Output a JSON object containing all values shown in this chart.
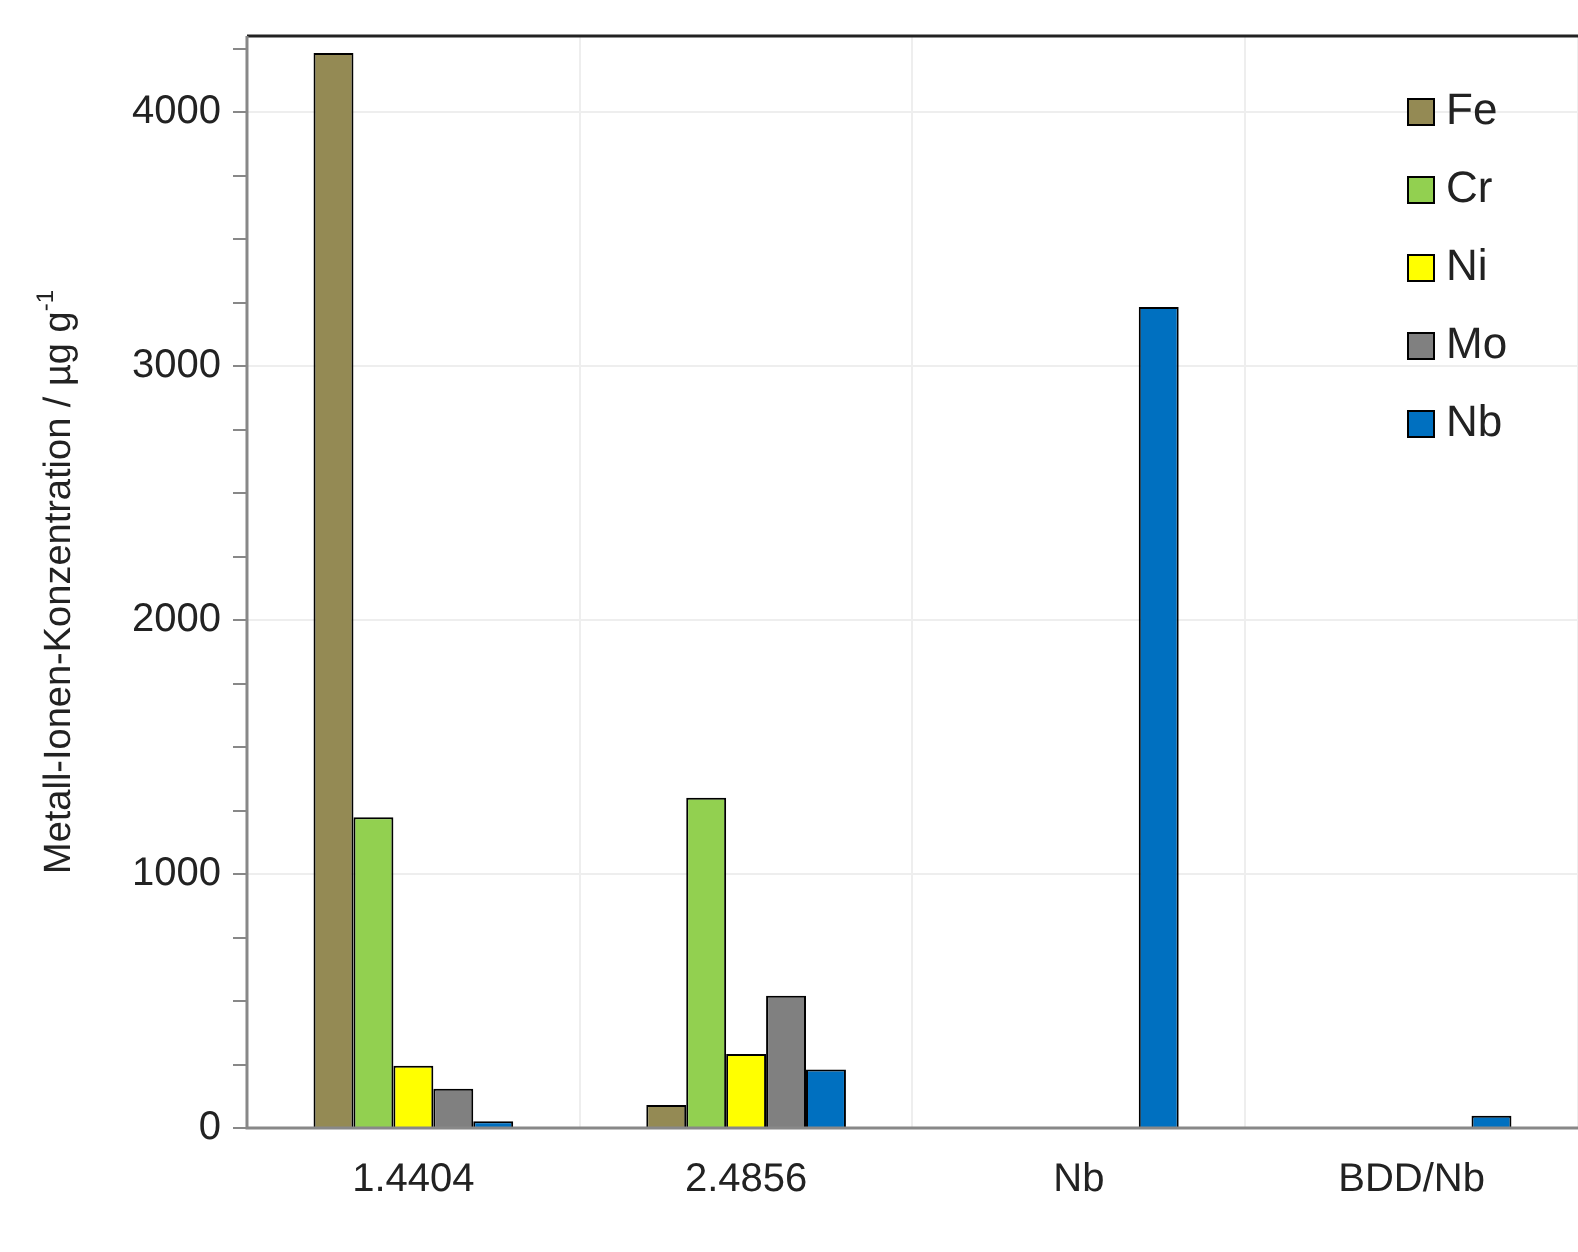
{
  "chart_data": {
    "type": "bar",
    "ylabel": "Metall-Ionen-Konzentration / µg g$^{-1}$",
    "categories": [
      "1.4404",
      "2.4856",
      "Nb",
      "BDD/Nb"
    ],
    "series": [
      {
        "name": "Fe",
        "color": "#948a54",
        "values": [
          4233,
          91,
          null,
          null
        ]
      },
      {
        "name": "Cr",
        "color": "#92d050",
        "values": [
          1224,
          1300,
          null,
          null
        ]
      },
      {
        "name": "Ni",
        "color": "#ffff00",
        "values": [
          245,
          291,
          null,
          null
        ]
      },
      {
        "name": "Mo",
        "color": "#808080",
        "values": [
          155,
          521,
          null,
          null
        ]
      },
      {
        "name": "Nb",
        "color": "#0070c0",
        "values": [
          27,
          230,
          3233,
          48
        ]
      }
    ],
    "ylim": [
      0,
      4300
    ],
    "yticks": [
      0,
      {
        "value": 250,
        "label": null
      },
      {
        "value": 500,
        "label": null
      },
      {
        "value": 750,
        "label": null
      },
      1000,
      {
        "value": 1250,
        "label": null
      },
      {
        "value": 1500,
        "label": null
      },
      {
        "value": 1750,
        "label": null
      },
      2000,
      {
        "value": 2250,
        "label": null
      },
      {
        "value": 2500,
        "label": null
      },
      {
        "value": 2750,
        "label": null
      },
      3000,
      {
        "value": 3250,
        "label": null
      },
      {
        "value": 3500,
        "label": null
      },
      {
        "value": 3750,
        "label": null
      },
      4000,
      {
        "value": 4250,
        "label": null
      }
    ],
    "grid": true,
    "legend": "top right"
  }
}
